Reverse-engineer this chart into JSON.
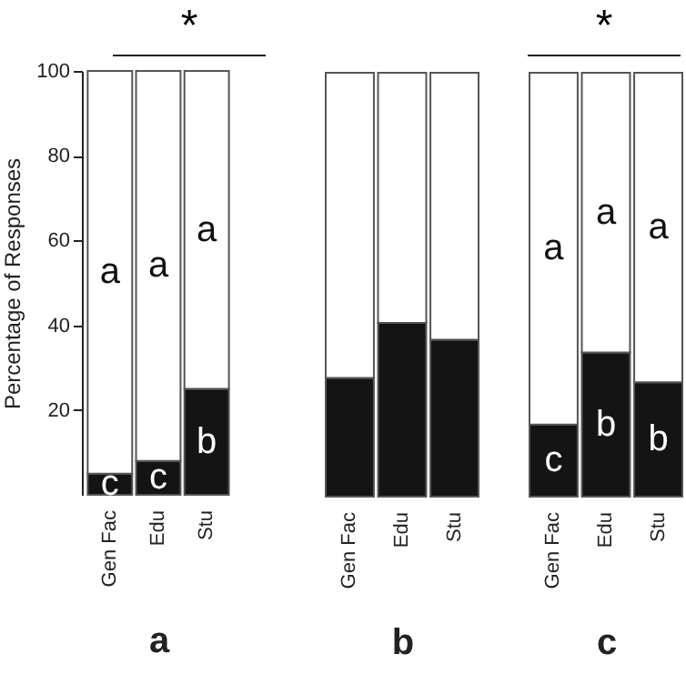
{
  "chart_data": [
    {
      "type": "bar",
      "stacked": true,
      "categories": [
        "Gen Fac",
        "Edu",
        "Stu"
      ],
      "ylabel": "Percentage of Responses",
      "xlabel": "a",
      "ylim": [
        0,
        100
      ],
      "yticks": [
        20,
        40,
        60,
        80,
        100
      ],
      "series": [
        {
          "color": "#141414",
          "values": [
            5,
            8,
            25
          ]
        },
        {
          "color": "#ffffff",
          "values": [
            95,
            92,
            75
          ]
        }
      ],
      "annotations": [
        "*",
        "a",
        "a",
        "a",
        "c",
        "c",
        "b"
      ]
    },
    {
      "type": "bar",
      "stacked": true,
      "categories": [
        "Gen Fac",
        "Edu",
        "Stu"
      ],
      "xlabel": "b",
      "ylim": [
        0,
        100
      ],
      "tick_labels": "x",
      "series": [
        {
          "color": "#141414",
          "values": [
            28,
            41,
            37
          ]
        },
        {
          "color": "#ffffff",
          "values": [
            72,
            59,
            63
          ]
        }
      ]
    },
    {
      "type": "bar",
      "stacked": true,
      "categories": [
        "Gen Fac",
        "Edu",
        "Stu"
      ],
      "xlabel": "c",
      "ylim": [
        0,
        100
      ],
      "tick_labels": "x",
      "series": [
        {
          "color": "#141414",
          "values": [
            17,
            34,
            27
          ]
        },
        {
          "color": "#ffffff",
          "values": [
            83,
            66,
            73
          ]
        }
      ],
      "annotations": [
        "*",
        "a",
        "a",
        "a",
        "c",
        "b",
        "b"
      ]
    }
  ]
}
